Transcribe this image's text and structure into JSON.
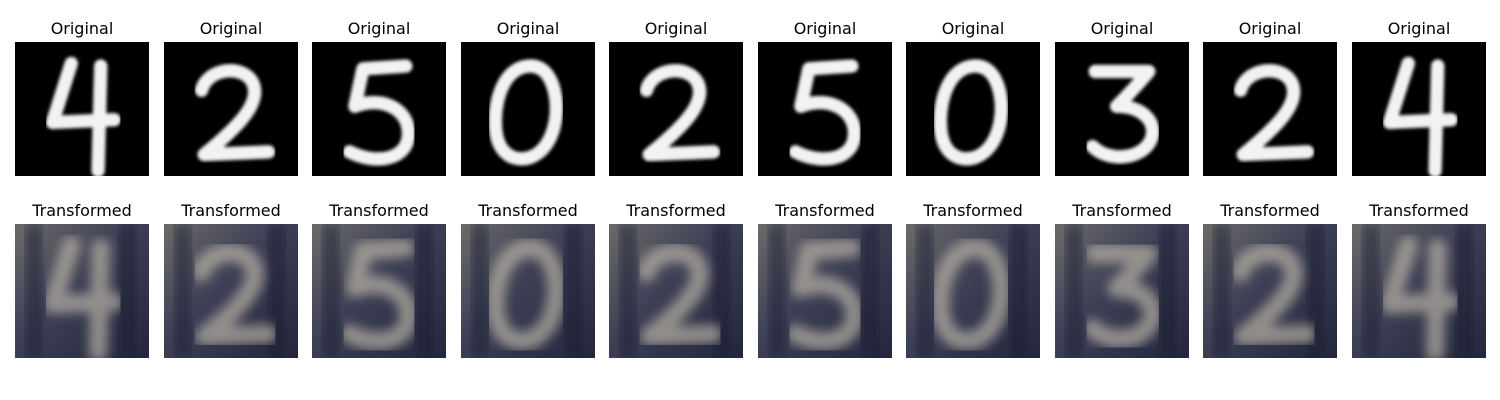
{
  "rows": [
    {
      "kind": "original",
      "panels": [
        {
          "title": "Original",
          "digit": "4"
        },
        {
          "title": "Original",
          "digit": "2"
        },
        {
          "title": "Original",
          "digit": "5"
        },
        {
          "title": "Original",
          "digit": "0"
        },
        {
          "title": "Original",
          "digit": "2"
        },
        {
          "title": "Original",
          "digit": "5"
        },
        {
          "title": "Original",
          "digit": "0"
        },
        {
          "title": "Original",
          "digit": "3"
        },
        {
          "title": "Original",
          "digit": "2"
        },
        {
          "title": "Original",
          "digit": "4"
        }
      ]
    },
    {
      "kind": "transformed",
      "panels": [
        {
          "title": "Transformed",
          "digit": "4"
        },
        {
          "title": "Transformed",
          "digit": "2"
        },
        {
          "title": "Transformed",
          "digit": "5"
        },
        {
          "title": "Transformed",
          "digit": "0"
        },
        {
          "title": "Transformed",
          "digit": "2"
        },
        {
          "title": "Transformed",
          "digit": "5"
        },
        {
          "title": "Transformed",
          "digit": "0"
        },
        {
          "title": "Transformed",
          "digit": "3"
        },
        {
          "title": "Transformed",
          "digit": "2"
        },
        {
          "title": "Transformed",
          "digit": "4"
        }
      ]
    }
  ],
  "colors": {
    "original_background": "#000000",
    "original_stroke": "#f2f2f2",
    "transformed_background": "#4a4c5e",
    "transformed_stroke": "#b8b2a6"
  }
}
